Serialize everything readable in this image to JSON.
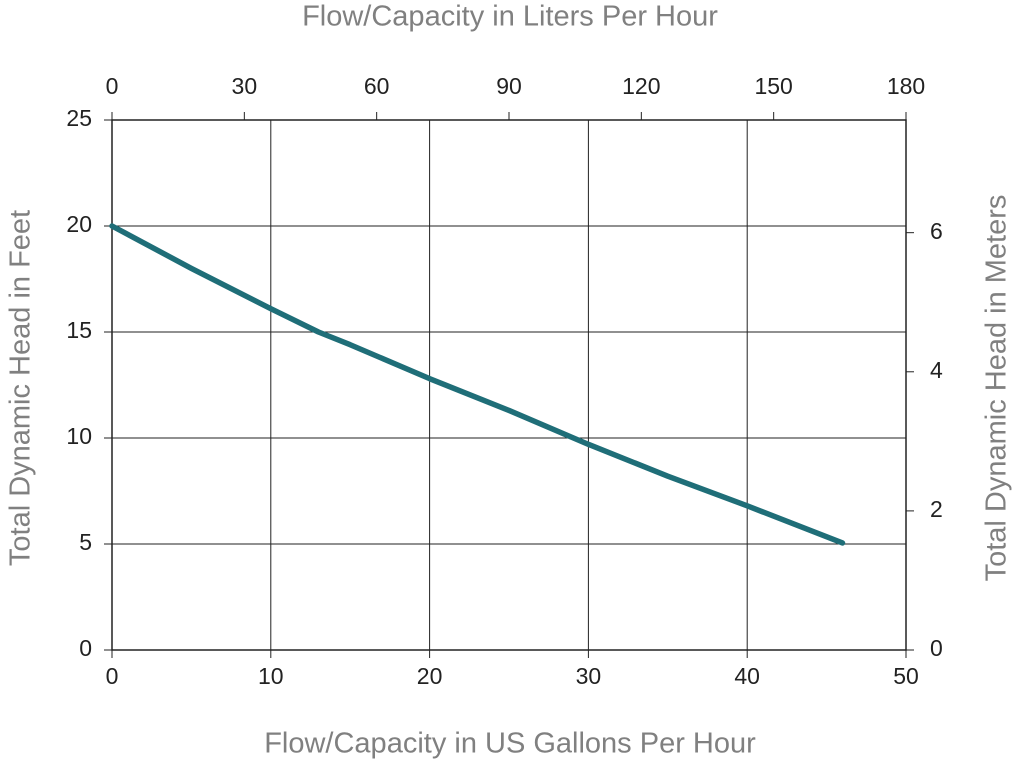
{
  "chart_data": {
    "type": "line",
    "x_title": "Flow/Capacity in US Gallons Per Hour",
    "x2_title": "Flow/Capacity in Liters Per Hour",
    "y_title": "Total Dynamic Head in Feet",
    "y2_title": "Total Dynamic Head in Meters",
    "x": [
      0,
      5,
      10,
      13,
      15,
      20,
      25,
      30,
      35,
      40,
      46
    ],
    "series": [
      {
        "color": "#1f6e78",
        "values": [
          20,
          18,
          16.1,
          15,
          14.4,
          12.8,
          11.3,
          9.7,
          8.2,
          6.8,
          5.05
        ]
      }
    ],
    "xlim": [
      0,
      50
    ],
    "xticks": [
      0,
      10,
      20,
      30,
      40,
      50
    ],
    "x2lim": [
      0,
      180
    ],
    "x2ticks": [
      0,
      30,
      60,
      90,
      120,
      150,
      180
    ],
    "ylim": [
      0,
      25
    ],
    "yticks": [
      0,
      5,
      10,
      15,
      20,
      25
    ],
    "y2lim": [
      0,
      7.62
    ],
    "y2ticks": [
      0,
      2,
      4,
      6
    ],
    "grid": true
  }
}
